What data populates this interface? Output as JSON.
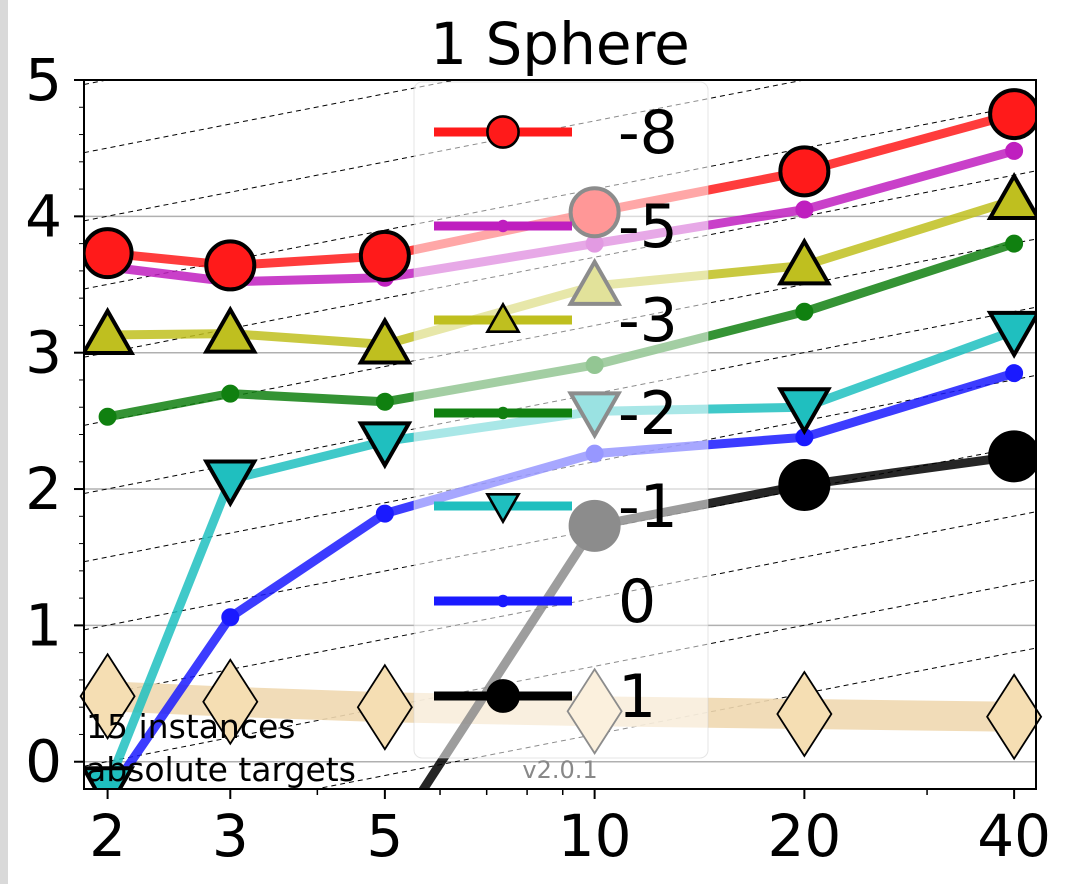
{
  "chart_data": {
    "type": "line",
    "title": "1 Sphere",
    "x_scale": "log",
    "xlim": [
      1.85,
      43
    ],
    "ylim": [
      -0.2,
      5.0
    ],
    "x_ticks": [
      2,
      3,
      5,
      10,
      20,
      40
    ],
    "x_tick_labels": [
      "2",
      "3",
      "5",
      "10",
      "20",
      "40"
    ],
    "y_ticks": [
      0,
      1,
      2,
      3,
      4,
      5
    ],
    "y_tick_labels": [
      "0",
      "1",
      "2",
      "3",
      "4",
      "5"
    ],
    "grid": "horizontal",
    "legend_position": "upper-center",
    "series": [
      {
        "name": "-8",
        "color": "#ff1a1a",
        "marker": "circle-large",
        "x": [
          2,
          3,
          5,
          10,
          20,
          40
        ],
        "y": [
          3.73,
          3.64,
          3.71,
          4.03,
          4.33,
          4.75
        ]
      },
      {
        "name": "-5",
        "color": "#bf1fbf",
        "marker": "circle-small",
        "x": [
          2,
          3,
          5,
          10,
          20,
          40
        ],
        "y": [
          3.63,
          3.52,
          3.55,
          3.8,
          4.05,
          4.48
        ]
      },
      {
        "name": "-3",
        "color": "#bfbf1f",
        "marker": "triangle-up",
        "x": [
          2,
          3,
          5,
          10,
          20,
          40
        ],
        "y": [
          3.13,
          3.14,
          3.06,
          3.49,
          3.64,
          4.12
        ]
      },
      {
        "name": "-2",
        "color": "#108010",
        "marker": "circle-small",
        "x": [
          2,
          3,
          5,
          10,
          20,
          40
        ],
        "y": [
          2.53,
          2.7,
          2.64,
          2.91,
          3.3,
          3.8
        ]
      },
      {
        "name": "-1",
        "color": "#1fbfbf",
        "marker": "triangle-down",
        "x": [
          2,
          3,
          5,
          10,
          20,
          40
        ],
        "y": [
          -0.18,
          2.07,
          2.35,
          2.57,
          2.6,
          3.16
        ]
      },
      {
        "name": "0",
        "color": "#1a1aff",
        "marker": "circle-small",
        "x": [
          2,
          3,
          5,
          10,
          20,
          40
        ],
        "y": [
          -0.25,
          1.06,
          1.82,
          2.26,
          2.38,
          2.85
        ]
      },
      {
        "name": "1",
        "color": "#000000",
        "marker": "circle-large",
        "x": [
          5.6,
          10,
          20,
          40
        ],
        "y": [
          -0.25,
          1.73,
          2.03,
          2.24
        ]
      }
    ],
    "reference": {
      "name": "",
      "color": "#f0d8b0",
      "x": [
        2,
        3,
        5,
        10,
        20,
        40
      ],
      "y": [
        0.48,
        0.44,
        0.4,
        0.37,
        0.35,
        0.33
      ]
    },
    "annotations": [
      "15 instances",
      "absolute targets"
    ],
    "version_label": "v2.0.1"
  }
}
